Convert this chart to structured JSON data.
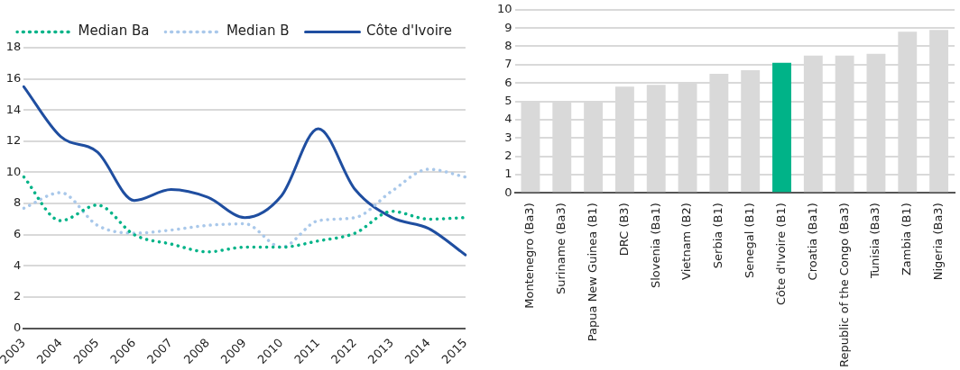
{
  "chart_data": [
    {
      "type": "line",
      "categories": [
        "2003",
        "2004",
        "2005",
        "2006",
        "2007",
        "2008",
        "2009",
        "2010",
        "2011",
        "2012",
        "2013",
        "2014",
        "2015"
      ],
      "series": [
        {
          "name": "Median Ba",
          "color": "#00b388",
          "line_style": "dotted",
          "values": [
            9.7,
            6.9,
            7.9,
            6.0,
            5.4,
            4.9,
            5.2,
            5.2,
            5.6,
            6.1,
            7.5,
            7.0,
            7.1
          ]
        },
        {
          "name": "Median B",
          "color": "#a9c8ea",
          "line_style": "dotted",
          "values": [
            7.7,
            8.7,
            6.6,
            6.1,
            6.3,
            6.6,
            6.7,
            5.2,
            6.9,
            7.1,
            8.8,
            10.2,
            9.7
          ]
        },
        {
          "name": "Côte d'Ivoire",
          "color": "#1f4ea0",
          "line_style": "solid",
          "values": [
            15.5,
            12.3,
            11.3,
            8.2,
            8.9,
            8.4,
            7.1,
            8.5,
            12.8,
            8.9,
            7.1,
            6.4,
            4.7
          ]
        }
      ],
      "ylim": [
        0,
        18
      ],
      "yticks": [
        0,
        2,
        4,
        6,
        8,
        10,
        12,
        14,
        16,
        18
      ],
      "grid": "y",
      "legend": "top",
      "marker": "none"
    },
    {
      "type": "bar",
      "categories": [
        "Montenegro (Ba3)",
        "Suriname (Ba3)",
        "Papua New Guinea (B1)",
        "DRC (B3)",
        "Slovenia (Ba1)",
        "Vietnam (B2)",
        "Serbia (B1)",
        "Senegal (B1)",
        "Côte d'Ivoire (B1)",
        "Croatia (Ba1)",
        "Republic of the Congo (Ba3)",
        "Tunisia (Ba3)",
        "Zambia (B1)",
        "Nigeria (Ba3)"
      ],
      "values": [
        5.0,
        5.0,
        5.0,
        5.8,
        5.9,
        6.0,
        6.5,
        6.7,
        7.1,
        7.5,
        7.5,
        7.6,
        8.8,
        8.9
      ],
      "colors": [
        "#d9d9d9",
        "#d9d9d9",
        "#d9d9d9",
        "#d9d9d9",
        "#d9d9d9",
        "#d9d9d9",
        "#d9d9d9",
        "#d9d9d9",
        "#00b388",
        "#d9d9d9",
        "#d9d9d9",
        "#d9d9d9",
        "#d9d9d9",
        "#d9d9d9"
      ],
      "ylim": [
        0,
        10
      ],
      "yticks": [
        0,
        1,
        2,
        3,
        4,
        5,
        6,
        7,
        8,
        9,
        10
      ],
      "grid": "y"
    }
  ]
}
